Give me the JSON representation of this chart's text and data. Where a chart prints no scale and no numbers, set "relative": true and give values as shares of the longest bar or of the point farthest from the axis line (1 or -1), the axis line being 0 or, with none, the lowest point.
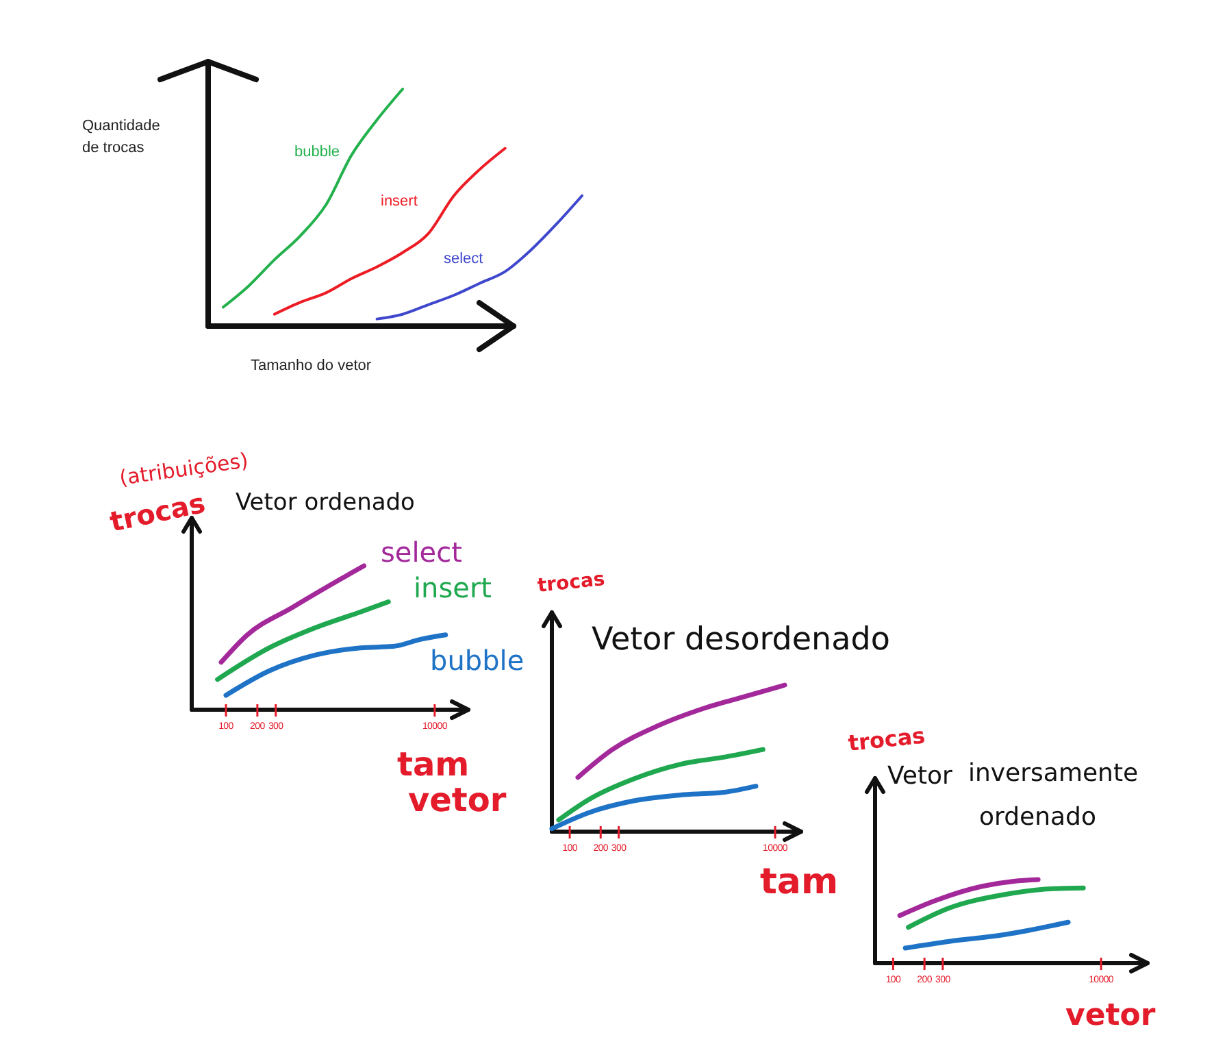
{
  "chart_data": [
    {
      "type": "line",
      "xlabel": "Tamanho do vetor",
      "ylabel": "Quantidade de trocas",
      "relative": true,
      "categories": [
        null,
        null,
        null,
        null,
        null,
        null,
        null,
        null,
        null,
        null,
        null,
        null,
        null,
        null,
        null
      ],
      "series": [
        {
          "name": "bubble",
          "color": "#22b14c",
          "values": [
            0.08,
            0.17,
            0.28,
            0.38,
            0.51,
            0.72,
            0.87,
            1,
            null,
            null,
            null,
            null,
            null,
            null,
            null
          ]
        },
        {
          "name": "insert",
          "color": "#ed1c24",
          "values": [
            null,
            null,
            0.05,
            0.1,
            0.14,
            0.2,
            0.25,
            0.31,
            0.39,
            0.55,
            0.66,
            0.75,
            null,
            null,
            null
          ]
        },
        {
          "name": "select",
          "color": "#3f48cc",
          "values": [
            null,
            null,
            null,
            null,
            null,
            null,
            0.03,
            0.05,
            0.09,
            0.13,
            0.18,
            0.23,
            0.32,
            0.43,
            0.55
          ]
        }
      ]
    },
    {
      "type": "line",
      "title": "Vetor ordenado",
      "ylabel": "trocas",
      "xlabel": "tam vetor",
      "annotations": [
        "(atribuições)"
      ],
      "relative": true,
      "log": "x",
      "xlim": [
        47,
        21000
      ],
      "xticks": [
        100,
        200,
        300,
        10000
      ],
      "series": [
        {
          "name": "select",
          "color": "#a3299b",
          "x": [
            90,
            160,
            430,
            1200,
            2100
          ],
          "values": [
            0.33,
            0.52,
            0.71,
            0.9,
            1
          ]
        },
        {
          "name": "insert",
          "color": "#1fa84f",
          "x": [
            83,
            260,
            720,
            1950,
            3600
          ],
          "values": [
            0.21,
            0.43,
            0.57,
            0.68,
            0.75
          ]
        },
        {
          "name": "bubble",
          "color": "#1f73c6",
          "x": [
            100,
            260,
            720,
            1950,
            4000,
            7400,
            12700
          ],
          "values": [
            0.1,
            0.27,
            0.38,
            0.43,
            0.44,
            0.49,
            0.52
          ]
        }
      ]
    },
    {
      "type": "line",
      "title": "Vetor desordenado",
      "ylabel": "trocas",
      "xlabel": "tam",
      "relative": true,
      "log": "x",
      "xlim": [
        67,
        17900
      ],
      "xticks": [
        100,
        200,
        300,
        10000
      ],
      "series": [
        {
          "color": "#a3299b",
          "x": [
            120,
            260,
            710,
            2000,
            5600,
            12400
          ],
          "values": [
            0.37,
            0.56,
            0.72,
            0.84,
            0.93,
            1
          ]
        },
        {
          "color": "#1fa84f",
          "x": [
            78,
            154,
            420,
            1200,
            3300,
            7600
          ],
          "values": [
            0.08,
            0.22,
            0.36,
            0.46,
            0.51,
            0.56
          ]
        },
        {
          "color": "#1f73c6",
          "x": [
            67,
            154,
            420,
            1200,
            3300,
            6500
          ],
          "values": [
            0.02,
            0.13,
            0.21,
            0.25,
            0.27,
            0.31
          ]
        }
      ]
    },
    {
      "type": "line",
      "title": "Vetor inversamente ordenado",
      "ylabel": "trocas",
      "xlabel": "vetor",
      "relative": true,
      "log": "x",
      "xlim": [
        67,
        28000
      ],
      "xticks": [
        100,
        200,
        300,
        10000
      ],
      "series": [
        {
          "color": "#a3299b",
          "x": [
            116,
            256,
            720,
            1440,
            2480
          ],
          "values": [
            0.57,
            0.75,
            0.92,
            0.98,
            1
          ]
        },
        {
          "color": "#1fa84f",
          "x": [
            140,
            346,
            1160,
            3260,
            6750
          ],
          "values": [
            0.43,
            0.66,
            0.82,
            0.89,
            0.9
          ]
        },
        {
          "color": "#1f73c6",
          "x": [
            131,
            346,
            1160,
            4830
          ],
          "values": [
            0.18,
            0.26,
            0.34,
            0.49
          ]
        }
      ]
    }
  ]
}
